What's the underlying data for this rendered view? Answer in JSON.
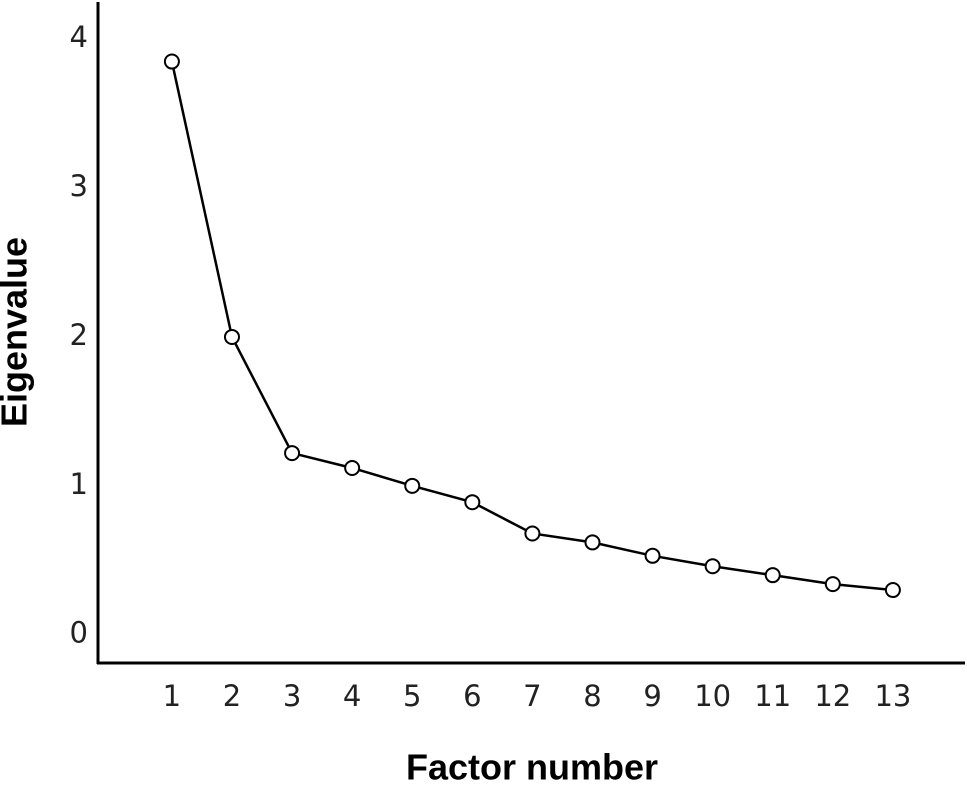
{
  "chart_data": {
    "type": "line",
    "x_label": "Factor number",
    "y_label": "Eigenvalue",
    "x": [
      1,
      2,
      3,
      4,
      5,
      6,
      7,
      8,
      9,
      10,
      11,
      12,
      13
    ],
    "series": [
      {
        "color": "#000000",
        "values": [
          3.85,
          2.0,
          1.22,
          1.12,
          1.0,
          0.89,
          0.68,
          0.62,
          0.53,
          0.46,
          0.4,
          0.34,
          0.3
        ]
      }
    ],
    "xlim": [
      -0.23,
      14.2
    ],
    "xticks": [
      1,
      2,
      3,
      4,
      5,
      6,
      7,
      8,
      9,
      10,
      11,
      12,
      13
    ],
    "ylim": [
      -0.19,
      4.25
    ],
    "yticks": [
      0,
      1,
      2,
      3,
      4
    ]
  }
}
